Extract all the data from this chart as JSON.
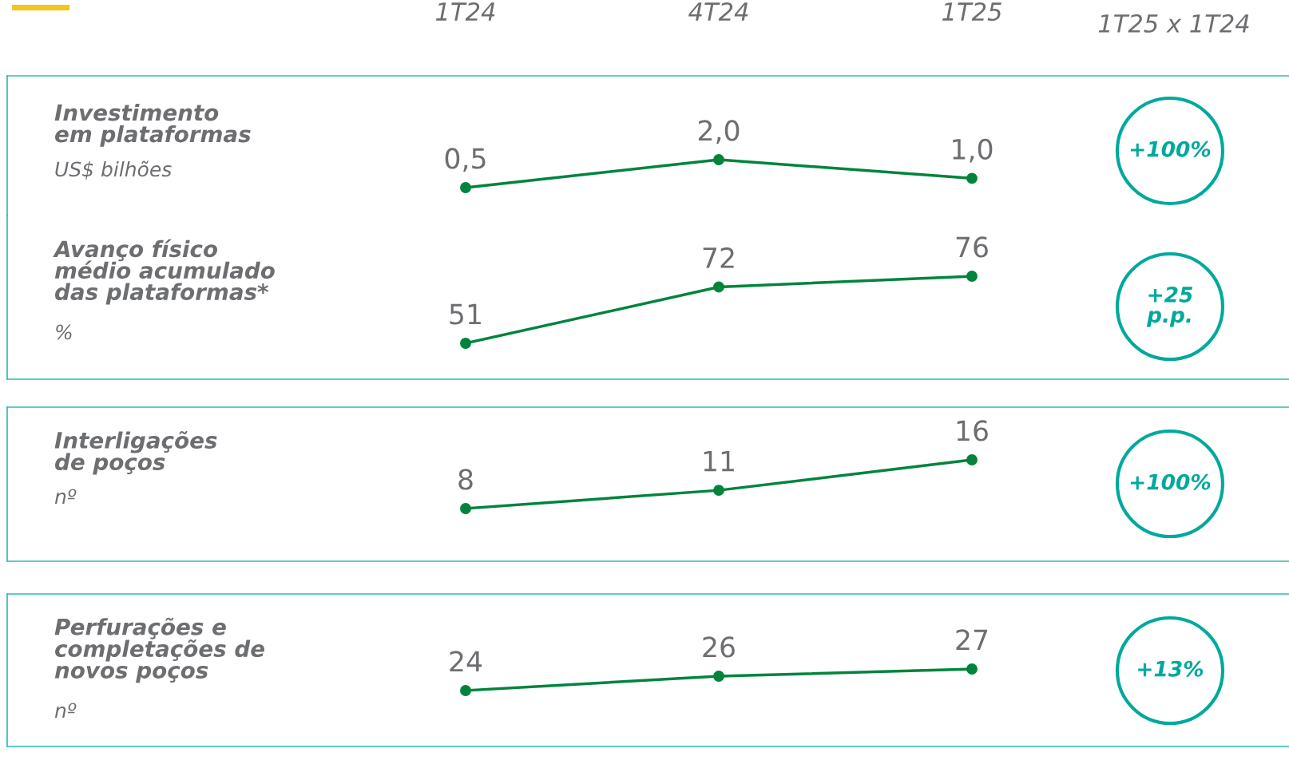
{
  "chart_data": [
    {
      "type": "line",
      "title": "Investimento\nem plataformas",
      "ylabel": "US$ bilhões",
      "categories": [
        "1T24",
        "4T24",
        "1T25"
      ],
      "values": [
        0.5,
        2.0,
        1.0
      ],
      "value_labels": [
        "0,5",
        "2,0",
        "1,0"
      ],
      "color": "#00843d",
      "marker": "circle",
      "tick_labels": "x",
      "annotations": [
        "+100%",
        "1T25 x 1T24"
      ]
    },
    {
      "type": "line",
      "title": "Avanço físico\nmédio acumulado\ndas plataformas*",
      "ylabel": "%",
      "categories": [
        null,
        null,
        null
      ],
      "values": [
        51,
        72,
        76
      ],
      "data_labels": true,
      "color": "#00843d",
      "marker": "circle",
      "annotations": [
        "+25\np.p."
      ]
    },
    {
      "type": "line",
      "title": "Interligações\nde poços",
      "ylabel": "nº",
      "categories": [
        null,
        null,
        null
      ],
      "values": [
        8,
        11,
        16
      ],
      "data_labels": true,
      "color": "#00843d",
      "marker": "circle",
      "annotations": [
        "+100%"
      ]
    },
    {
      "type": "line",
      "title": "Perfurações e\ncompletações de\nnovos poços",
      "ylabel": "nº",
      "categories": [
        null,
        null,
        null
      ],
      "values": [
        24,
        26,
        27
      ],
      "data_labels": true,
      "color": "#00843d",
      "marker": "circle",
      "annotations": [
        "+13%"
      ]
    }
  ]
}
